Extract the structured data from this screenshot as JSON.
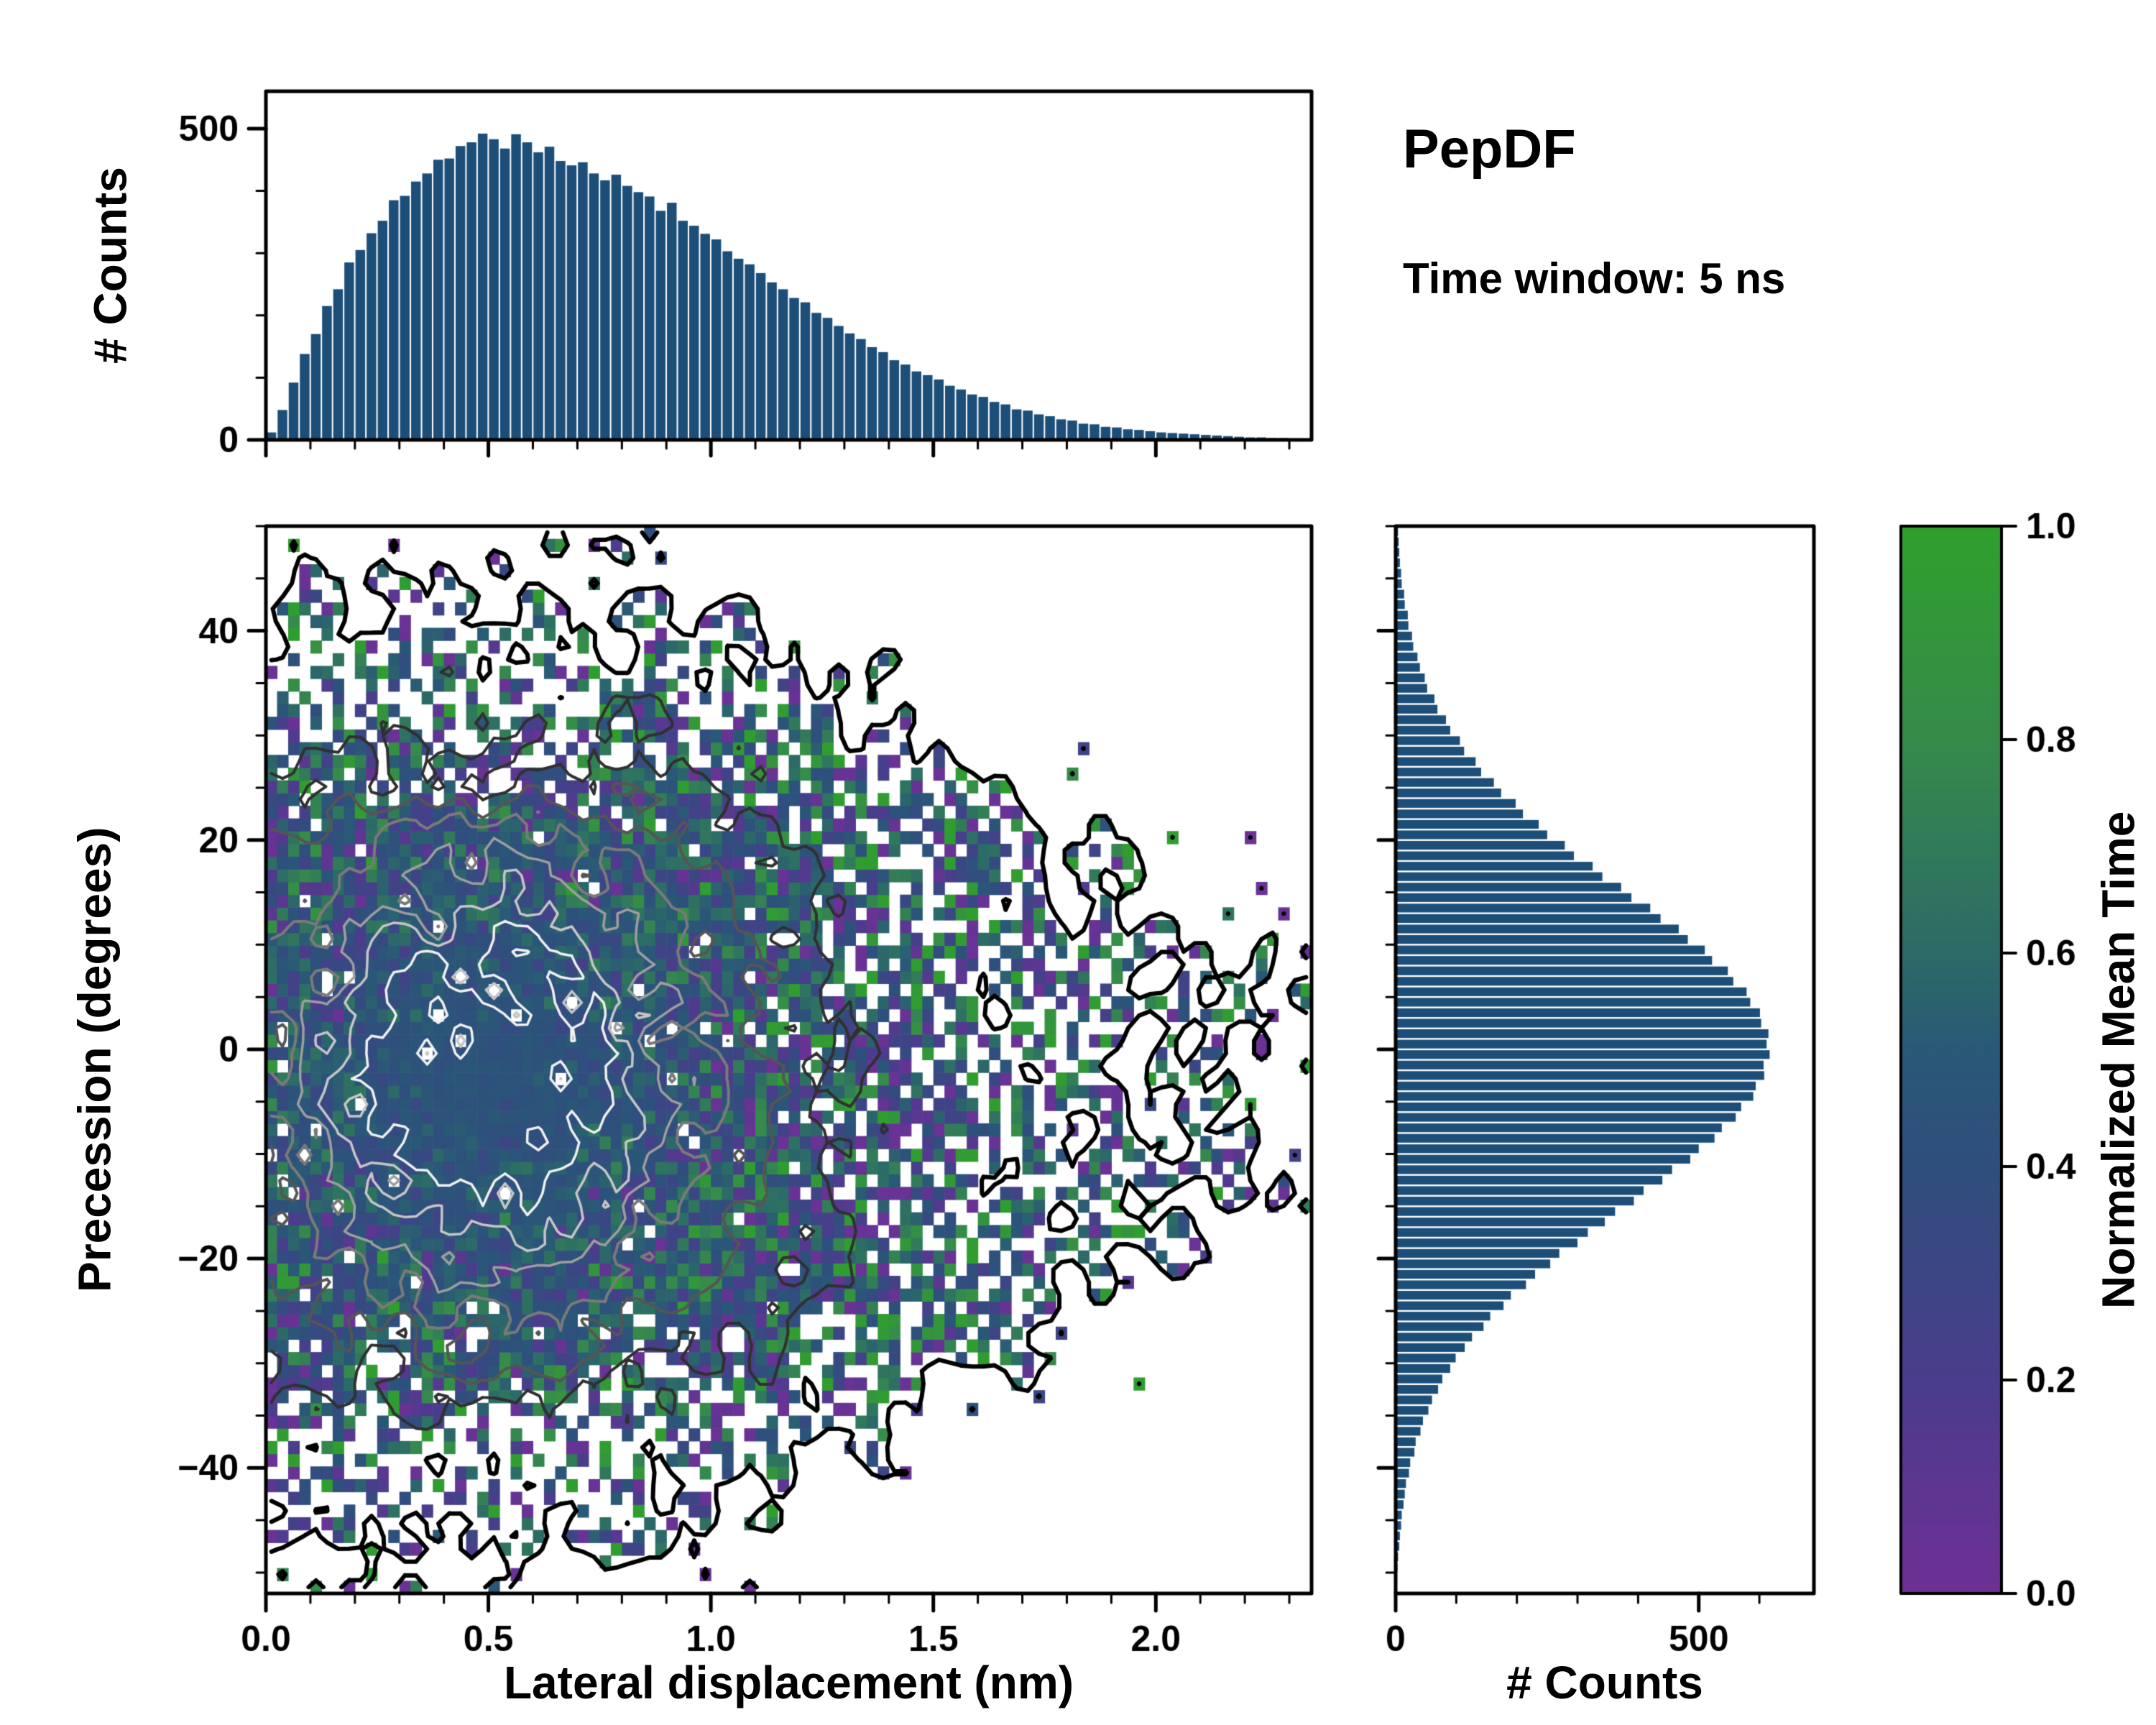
{
  "panel": {
    "title": "PepDF",
    "subtitle": "Time window: 5 ns"
  },
  "style": {
    "background": "#ffffff",
    "spine_color": "#000000",
    "text_color": "#000000",
    "hist_color": "#1c4e78",
    "colormap_stops": [
      [
        0,
        "#6f3096"
      ],
      [
        0.2,
        "#4a3d8c"
      ],
      [
        0.4,
        "#2f4f7d"
      ],
      [
        0.5,
        "#2a5778"
      ],
      [
        0.6,
        "#2c6b67"
      ],
      [
        0.8,
        "#368b4b"
      ],
      [
        1,
        "#2fa02c"
      ]
    ],
    "contour_levels": [
      {
        "level": 0.045,
        "color": "#000000",
        "width": 6
      },
      {
        "level": 0.26,
        "color": "#303030",
        "width": 4
      },
      {
        "level": 0.42,
        "color": "#555555",
        "width": 4
      },
      {
        "level": 0.55,
        "color": "#7a7a7a",
        "width": 4
      },
      {
        "level": 0.66,
        "color": "#9e9e9e",
        "width": 3.5
      },
      {
        "level": 0.76,
        "color": "#c6c6c6",
        "width": 3.5
      },
      {
        "level": 0.86,
        "color": "#f0f0f0",
        "width": 3.5
      }
    ]
  },
  "chart_data": [
    {
      "id": "top_histogram",
      "type": "bar",
      "orientation": "vertical",
      "ylabel": "# Counts",
      "x_range": [
        0,
        2.35
      ],
      "ylim": [
        0,
        560
      ],
      "y_ticks": [
        {
          "v": 0,
          "label": "0"
        },
        {
          "v": 500,
          "label": "500"
        }
      ],
      "minor_y_step": 100,
      "bins": 94,
      "values": [
        12,
        48,
        92,
        138,
        170,
        215,
        242,
        285,
        305,
        332,
        352,
        385,
        392,
        415,
        428,
        450,
        452,
        472,
        478,
        492,
        483,
        468,
        491,
        478,
        462,
        471,
        448,
        441,
        446,
        428,
        417,
        426,
        408,
        398,
        391,
        368,
        381,
        352,
        344,
        331,
        322,
        303,
        291,
        282,
        268,
        253,
        242,
        228,
        221,
        204,
        196,
        183,
        171,
        162,
        149,
        141,
        128,
        121,
        110,
        104,
        97,
        87,
        81,
        73,
        69,
        61,
        57,
        49,
        47,
        41,
        38,
        33,
        31,
        26,
        25,
        21,
        20,
        17,
        16,
        14,
        12,
        11,
        10,
        9,
        8,
        7,
        6,
        5,
        4,
        4,
        3,
        3,
        2,
        2
      ]
    },
    {
      "id": "joint_heatmap",
      "type": "heatmap",
      "xlabel": "Lateral displacement (nm)",
      "ylabel": "Precession (degrees)",
      "x_range": [
        0,
        2.35
      ],
      "y_range": [
        -52,
        50
      ],
      "x_ticks": [
        {
          "v": 0,
          "label": "0.0"
        },
        {
          "v": 0.5,
          "label": "0.5"
        },
        {
          "v": 1,
          "label": "1.0"
        },
        {
          "v": 1.5,
          "label": "1.5"
        },
        {
          "v": 2,
          "label": "2.0"
        }
      ],
      "y_ticks": [
        {
          "v": -40,
          "label": "−40"
        },
        {
          "v": -20,
          "label": "−20"
        },
        {
          "v": 0,
          "label": "0"
        },
        {
          "v": 20,
          "label": "20"
        },
        {
          "v": 40,
          "label": "40"
        }
      ],
      "minor_x_step": 0.1,
      "minor_y_step": 5,
      "color_label": "Normalized Mean Time",
      "color_range": [
        0,
        1
      ],
      "grid": [
        94,
        84
      ],
      "model": {
        "seed": 42,
        "x_peak": 0.5,
        "y_center": -2,
        "q_x_width": 0.6,
        "q_y_width": 28,
        "occ_base": 0.96,
        "occ_x_offset": 0.85,
        "occ_x_scale": 1.55,
        "occ_y_var": 1058,
        "occ_y_gain": 1.6,
        "y_limit": 52,
        "y_limit_scale": 1.5,
        "y_limit_pow": 1.6,
        "edge_soft": 6,
        "outlier_prob": 0.022,
        "value_mean": 0.45,
        "value_sd_min": 0.035,
        "value_sd_range": 0.33
      }
    },
    {
      "id": "right_histogram",
      "type": "bar",
      "orientation": "horizontal",
      "xlabel": "# Counts",
      "y_range": [
        -50,
        50
      ],
      "xlim": [
        0,
        690
      ],
      "x_ticks": [
        {
          "v": 0,
          "label": "0"
        },
        {
          "v": 500,
          "label": "500"
        }
      ],
      "minor_x_step": 100,
      "bins": 100,
      "values": [
        3,
        4,
        6,
        7,
        9,
        10,
        13,
        15,
        17,
        22,
        24,
        31,
        33,
        41,
        45,
        54,
        60,
        70,
        77,
        90,
        99,
        114,
        126,
        145,
        156,
        178,
        190,
        215,
        230,
        255,
        270,
        300,
        317,
        345,
        362,
        393,
        409,
        440,
        456,
        486,
        500,
        526,
        538,
        561,
        570,
        590,
        594,
        608,
        607,
        617,
        612,
        615,
        603,
        601,
        585,
        579,
        557,
        548,
        522,
        510,
        482,
        467,
        437,
        420,
        389,
        372,
        341,
        325,
        294,
        279,
        250,
        236,
        210,
        198,
        174,
        162,
        141,
        132,
        113,
        106,
        90,
        83,
        69,
        64,
        52,
        48,
        40,
        36,
        29,
        27,
        21,
        20,
        15,
        14,
        10,
        9,
        7,
        6,
        5,
        4
      ]
    },
    {
      "id": "colorbar",
      "type": "colorbar",
      "label": "Normalized Mean Time",
      "range": [
        0,
        1
      ],
      "ticks": [
        {
          "v": 0,
          "label": "0.0"
        },
        {
          "v": 0.2,
          "label": "0.2"
        },
        {
          "v": 0.4,
          "label": "0.4"
        },
        {
          "v": 0.6,
          "label": "0.6"
        },
        {
          "v": 0.8,
          "label": "0.8"
        },
        {
          "v": 1,
          "label": "1.0"
        }
      ]
    }
  ]
}
